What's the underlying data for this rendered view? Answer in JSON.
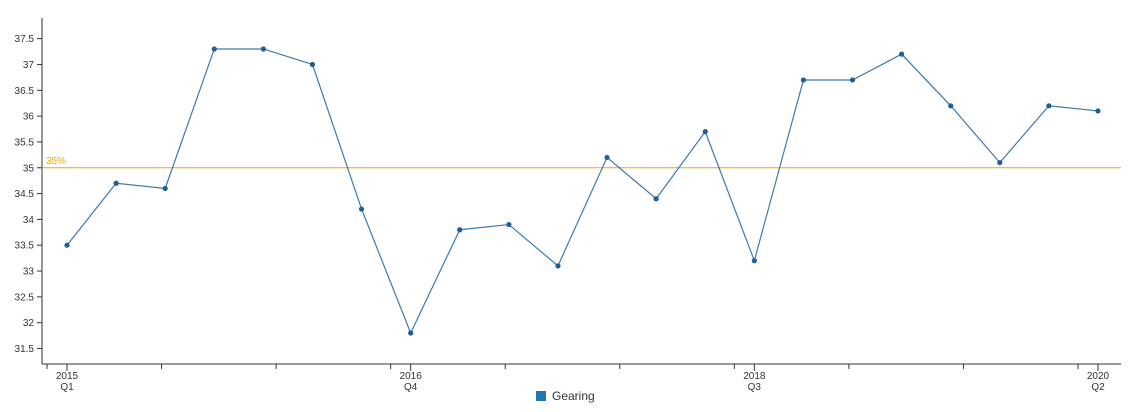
{
  "chart_data": {
    "type": "line",
    "series": [
      {
        "name": "Gearing",
        "color": "#3a7ab0",
        "values": [
          33.5,
          34.7,
          34.6,
          37.3,
          37.3,
          37.0,
          34.2,
          31.8,
          33.8,
          33.9,
          33.1,
          35.2,
          34.4,
          35.7,
          33.2,
          36.7,
          36.7,
          37.2,
          36.2,
          35.1,
          36.2,
          36.1
        ]
      }
    ],
    "x_labels": [
      {
        "index": 0,
        "year": "2015",
        "quarter": "Q1"
      },
      {
        "index": 7,
        "year": "2016",
        "quarter": "Q4"
      },
      {
        "index": 14,
        "year": "2018",
        "quarter": "Q3"
      },
      {
        "index": 21,
        "year": "2020",
        "quarter": "Q2"
      }
    ],
    "y_ticks": [
      "31.5",
      "32",
      "32.5",
      "33",
      "33.5",
      "34",
      "34.5",
      "35",
      "35.5",
      "36",
      "36.5",
      "37",
      "37.5"
    ],
    "ylim": [
      31.2,
      37.9
    ],
    "reference_line": {
      "value": 35,
      "label": "35%",
      "color": "#f0a500"
    },
    "legend": {
      "label": "Gearing",
      "color": "#1f77b4",
      "position": "bottom-center"
    },
    "grid": false,
    "title": "",
    "xlabel": "",
    "ylabel": ""
  }
}
